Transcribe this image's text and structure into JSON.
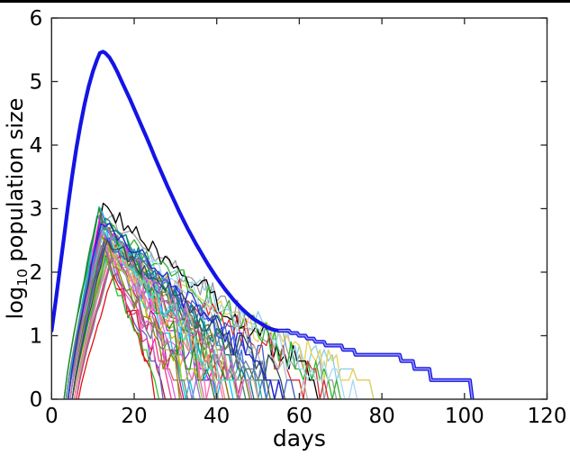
{
  "figure": {
    "background": "#ffffff",
    "top_strip_color": "#000000"
  },
  "chart_data": {
    "type": "line",
    "title": "",
    "xlabel": "days",
    "ylabel": "log10 population size",
    "ylabel_parts": {
      "prefix": "log",
      "sub": "10",
      "rest": " population size"
    },
    "xlim": [
      0,
      120
    ],
    "ylim": [
      0,
      6
    ],
    "xticks": [
      "0",
      "20",
      "40",
      "60",
      "80",
      "100",
      "120"
    ],
    "yticks": [
      "0",
      "1",
      "2",
      "3",
      "4",
      "5",
      "6"
    ],
    "grid": false,
    "legend": "none",
    "frame_color": "#262626",
    "deterministic": {
      "name": "deterministic-mean-curve",
      "color": "#1414e6",
      "tail_core_color": "#9090f2",
      "peak": {
        "day": 12.4,
        "log10_value": 5.47
      },
      "start": {
        "day": 0,
        "log10_value": 1.08
      },
      "extinction_day": 101.9,
      "points_main": [
        [
          0,
          1.08
        ],
        [
          1,
          1.55
        ],
        [
          2,
          2.05
        ],
        [
          3,
          2.55
        ],
        [
          4,
          3.05
        ],
        [
          5,
          3.52
        ],
        [
          6,
          3.95
        ],
        [
          7,
          4.32
        ],
        [
          8,
          4.65
        ],
        [
          9,
          4.93
        ],
        [
          10,
          5.16
        ],
        [
          11,
          5.34
        ],
        [
          11.7,
          5.45
        ],
        [
          12.4,
          5.47
        ],
        [
          13,
          5.45
        ],
        [
          14,
          5.38
        ],
        [
          15,
          5.27
        ],
        [
          16,
          5.14
        ],
        [
          17,
          5.0
        ],
        [
          18,
          4.86
        ],
        [
          19,
          4.72
        ],
        [
          20,
          4.57
        ],
        [
          21,
          4.42
        ],
        [
          22,
          4.27
        ],
        [
          23,
          4.12
        ],
        [
          24,
          3.97
        ],
        [
          25,
          3.81
        ],
        [
          26,
          3.66
        ],
        [
          27,
          3.51
        ],
        [
          28,
          3.36
        ],
        [
          29,
          3.22
        ],
        [
          30,
          3.08
        ],
        [
          31,
          2.94
        ],
        [
          32,
          2.81
        ],
        [
          33,
          2.68
        ],
        [
          34,
          2.56
        ],
        [
          35,
          2.44
        ],
        [
          36,
          2.33
        ],
        [
          37,
          2.22
        ],
        [
          38,
          2.11
        ],
        [
          39,
          2.01
        ],
        [
          40,
          1.91
        ],
        [
          41,
          1.82
        ],
        [
          42,
          1.73
        ],
        [
          43,
          1.65
        ],
        [
          44,
          1.57
        ],
        [
          45,
          1.5
        ],
        [
          46,
          1.43
        ],
        [
          47,
          1.37
        ],
        [
          48,
          1.31
        ],
        [
          49,
          1.26
        ],
        [
          50,
          1.22
        ],
        [
          51,
          1.18
        ],
        [
          52,
          1.14
        ],
        [
          53,
          1.11
        ],
        [
          54,
          1.09
        ],
        [
          55,
          1.079
        ]
      ],
      "points_tail": [
        [
          55,
          1.079
        ],
        [
          57.5,
          1.079
        ],
        [
          57.9,
          1.041
        ],
        [
          59.5,
          1.041
        ],
        [
          59.9,
          1.0
        ],
        [
          61.5,
          1.0
        ],
        [
          61.9,
          0.954
        ],
        [
          63.5,
          0.954
        ],
        [
          63.9,
          0.903
        ],
        [
          66.0,
          0.903
        ],
        [
          66.4,
          0.845
        ],
        [
          70.2,
          0.845
        ],
        [
          70.6,
          0.778
        ],
        [
          73.2,
          0.778
        ],
        [
          73.6,
          0.699
        ],
        [
          84.3,
          0.699
        ],
        [
          84.7,
          0.602
        ],
        [
          87.5,
          0.602
        ],
        [
          87.9,
          0.477
        ],
        [
          91.5,
          0.477
        ],
        [
          91.9,
          0.301
        ],
        [
          101.3,
          0.301
        ],
        [
          101.9,
          0.0
        ]
      ]
    },
    "stochastic": {
      "name": "stochastic-realizations",
      "seed": 7,
      "trajectories": [
        {
          "c": "#87ceeb",
          "s": 4.0,
          "p": 13.0,
          "v": 2.6,
          "e": 80
        },
        {
          "c": "#e8cf55",
          "s": 5.0,
          "p": 14.0,
          "v": 2.3,
          "e": 82
        },
        {
          "c": "#9e9e9e",
          "s": 3.5,
          "p": 12.0,
          "v": 2.95,
          "e": 73
        },
        {
          "c": "#000000",
          "s": 4.0,
          "p": 12.5,
          "v": 3.05,
          "e": 68
        },
        {
          "c": "#2db52d",
          "s": 4.5,
          "p": 13.0,
          "v": 2.75,
          "e": 72
        },
        {
          "c": "#d62d2d",
          "s": 5.0,
          "p": 14.0,
          "v": 2.5,
          "e": 70
        },
        {
          "c": "#a7d8f0",
          "s": 5.5,
          "p": 15.0,
          "v": 2.45,
          "e": 76
        },
        {
          "c": "#4169e1",
          "s": 4.0,
          "p": 12.0,
          "v": 2.7,
          "e": 57
        },
        {
          "c": "#b8b8b8",
          "s": 6.0,
          "p": 14.0,
          "v": 2.55,
          "e": 63
        },
        {
          "c": "#20b2aa",
          "s": 3.0,
          "p": 11.0,
          "v": 2.85,
          "e": 52
        },
        {
          "c": "#ff00ff",
          "s": 4.0,
          "p": 12.0,
          "v": 2.9,
          "e": 44
        },
        {
          "c": "#8a2be2",
          "s": 5.0,
          "p": 13.0,
          "v": 2.6,
          "e": 41
        },
        {
          "c": "#dc143c",
          "s": 6.0,
          "p": 15.0,
          "v": 2.35,
          "e": 49
        },
        {
          "c": "#ffa500",
          "s": 4.5,
          "p": 13.0,
          "v": 2.5,
          "e": 38
        },
        {
          "c": "#808000",
          "s": 3.5,
          "p": 12.0,
          "v": 2.8,
          "e": 46
        },
        {
          "c": "#00ced1",
          "s": 4.0,
          "p": 11.5,
          "v": 3.0,
          "e": 35
        },
        {
          "c": "#ff69b4",
          "s": 5.0,
          "p": 13.5,
          "v": 2.45,
          "e": 42
        },
        {
          "c": "#6b8e23",
          "s": 4.0,
          "p": 12.0,
          "v": 2.65,
          "e": 50
        },
        {
          "c": "#9370db",
          "s": 5.5,
          "p": 14.0,
          "v": 2.4,
          "e": 36
        },
        {
          "c": "#2e8b57",
          "s": 3.0,
          "p": 11.0,
          "v": 2.9,
          "e": 48
        },
        {
          "c": "#cd5c5c",
          "s": 6.0,
          "p": 14.5,
          "v": 2.2,
          "e": 33
        },
        {
          "c": "#00bfff",
          "s": 4.0,
          "p": 12.0,
          "v": 2.75,
          "e": 45
        },
        {
          "c": "#da70d6",
          "s": 5.0,
          "p": 13.0,
          "v": 2.55,
          "e": 39
        },
        {
          "c": "#556b2f",
          "s": 4.5,
          "p": 13.0,
          "v": 2.6,
          "e": 54
        },
        {
          "c": "#b22222",
          "s": 5.0,
          "p": 12.5,
          "v": 2.3,
          "e": 29
        },
        {
          "c": "#77cc77",
          "s": 6.0,
          "p": 14.0,
          "v": 2.35,
          "e": 47
        },
        {
          "c": "#4682b4",
          "s": 3.5,
          "p": 12.0,
          "v": 2.8,
          "e": 55
        },
        {
          "c": "#c71585",
          "s": 5.0,
          "p": 13.0,
          "v": 2.5,
          "e": 34
        },
        {
          "c": "#bdb76b",
          "s": 4.0,
          "p": 12.5,
          "v": 2.7,
          "e": 43
        },
        {
          "c": "#008080",
          "s": 4.5,
          "p": 13.0,
          "v": 2.85,
          "e": 51
        },
        {
          "c": "#9acd32",
          "s": 5.0,
          "p": 13.5,
          "v": 2.4,
          "e": 37
        },
        {
          "c": "#708090",
          "s": 6.0,
          "p": 15.0,
          "v": 2.25,
          "e": 58
        },
        {
          "c": "#e060e0",
          "s": 4.0,
          "p": 12.0,
          "v": 2.6,
          "e": 31
        },
        {
          "c": "#228b22",
          "s": 3.0,
          "p": 11.5,
          "v": 2.95,
          "e": 40
        },
        {
          "c": "#f08080",
          "s": 5.5,
          "p": 14.0,
          "v": 2.3,
          "e": 44
        },
        {
          "c": "#6a5acd",
          "s": 4.0,
          "p": 12.0,
          "v": 2.7,
          "e": 28
        },
        {
          "c": "#d2b48c",
          "s": 5.0,
          "p": 13.0,
          "v": 2.45,
          "e": 52
        },
        {
          "c": "#40e0d0",
          "s": 4.5,
          "p": 12.5,
          "v": 2.65,
          "e": 46
        },
        {
          "c": "#ee3a8c",
          "s": 6.0,
          "p": 14.0,
          "v": 2.15,
          "e": 30
        },
        {
          "c": "#3a5fcd",
          "s": 5.0,
          "p": 13.0,
          "v": 2.5,
          "e": 62
        },
        {
          "c": "#8b8b00",
          "s": 4.0,
          "p": 12.0,
          "v": 2.55,
          "e": 33
        },
        {
          "c": "#e01010",
          "s": 6.5,
          "p": 15.0,
          "v": 1.95,
          "e": 27
        },
        {
          "c": "#777777",
          "s": 4.0,
          "p": 12.0,
          "v": 2.4,
          "e": 35
        },
        {
          "c": "#30c030",
          "s": 5.0,
          "p": 13.0,
          "v": 2.2,
          "e": 26
        },
        {
          "c": "#cc66cc",
          "s": 4.5,
          "p": 12.5,
          "v": 2.75,
          "e": 49
        },
        {
          "c": "#2f4f4f",
          "s": 5.0,
          "p": 13.5,
          "v": 2.5,
          "e": 61
        },
        {
          "c": "#2222cc",
          "s": 4.0,
          "p": 12.0,
          "v": 2.8,
          "e": 59
        }
      ]
    }
  }
}
